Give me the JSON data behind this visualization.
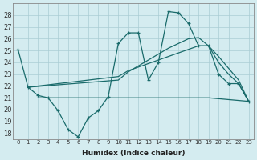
{
  "xlabel": "Humidex (Indice chaleur)",
  "bg_color": "#d4ecf0",
  "grid_color": "#aacdd4",
  "line_color": "#1a6b6b",
  "xlim": [
    -0.5,
    23.5
  ],
  "ylim": [
    17.5,
    29.0
  ],
  "xticks": [
    0,
    1,
    2,
    3,
    4,
    5,
    6,
    7,
    8,
    9,
    10,
    11,
    12,
    13,
    14,
    15,
    16,
    17,
    18,
    19,
    20,
    21,
    22,
    23
  ],
  "yticks": [
    18,
    19,
    20,
    21,
    22,
    23,
    24,
    25,
    26,
    27,
    28
  ],
  "series1_x": [
    0,
    1,
    2,
    3,
    4,
    5,
    6,
    7,
    8,
    9,
    10,
    11,
    12,
    13,
    14,
    15,
    16,
    17,
    18,
    19,
    20,
    21,
    22,
    23
  ],
  "series1_y": [
    25.1,
    21.9,
    21.2,
    21.0,
    19.9,
    18.3,
    17.7,
    19.3,
    19.9,
    21.1,
    25.6,
    26.5,
    26.5,
    22.5,
    24.0,
    28.3,
    28.2,
    27.3,
    25.4,
    25.4,
    23.0,
    22.2,
    22.2,
    20.7
  ],
  "series2_x": [
    2,
    19,
    23
  ],
  "series2_y": [
    21.0,
    21.0,
    20.7
  ],
  "series3_x": [
    1,
    10,
    11,
    12,
    13,
    14,
    15,
    16,
    17,
    18,
    19,
    20,
    21,
    22,
    23
  ],
  "series3_y": [
    21.9,
    22.5,
    23.2,
    23.7,
    24.2,
    24.7,
    25.2,
    25.6,
    26.0,
    26.1,
    25.4,
    24.0,
    23.0,
    22.2,
    20.7
  ],
  "series4_x": [
    1,
    10,
    11,
    12,
    13,
    14,
    15,
    16,
    17,
    18,
    19,
    20,
    21,
    22,
    23
  ],
  "series4_y": [
    21.9,
    22.8,
    23.3,
    23.6,
    23.9,
    24.2,
    24.5,
    24.8,
    25.1,
    25.4,
    25.4,
    24.5,
    23.5,
    22.5,
    20.7
  ]
}
